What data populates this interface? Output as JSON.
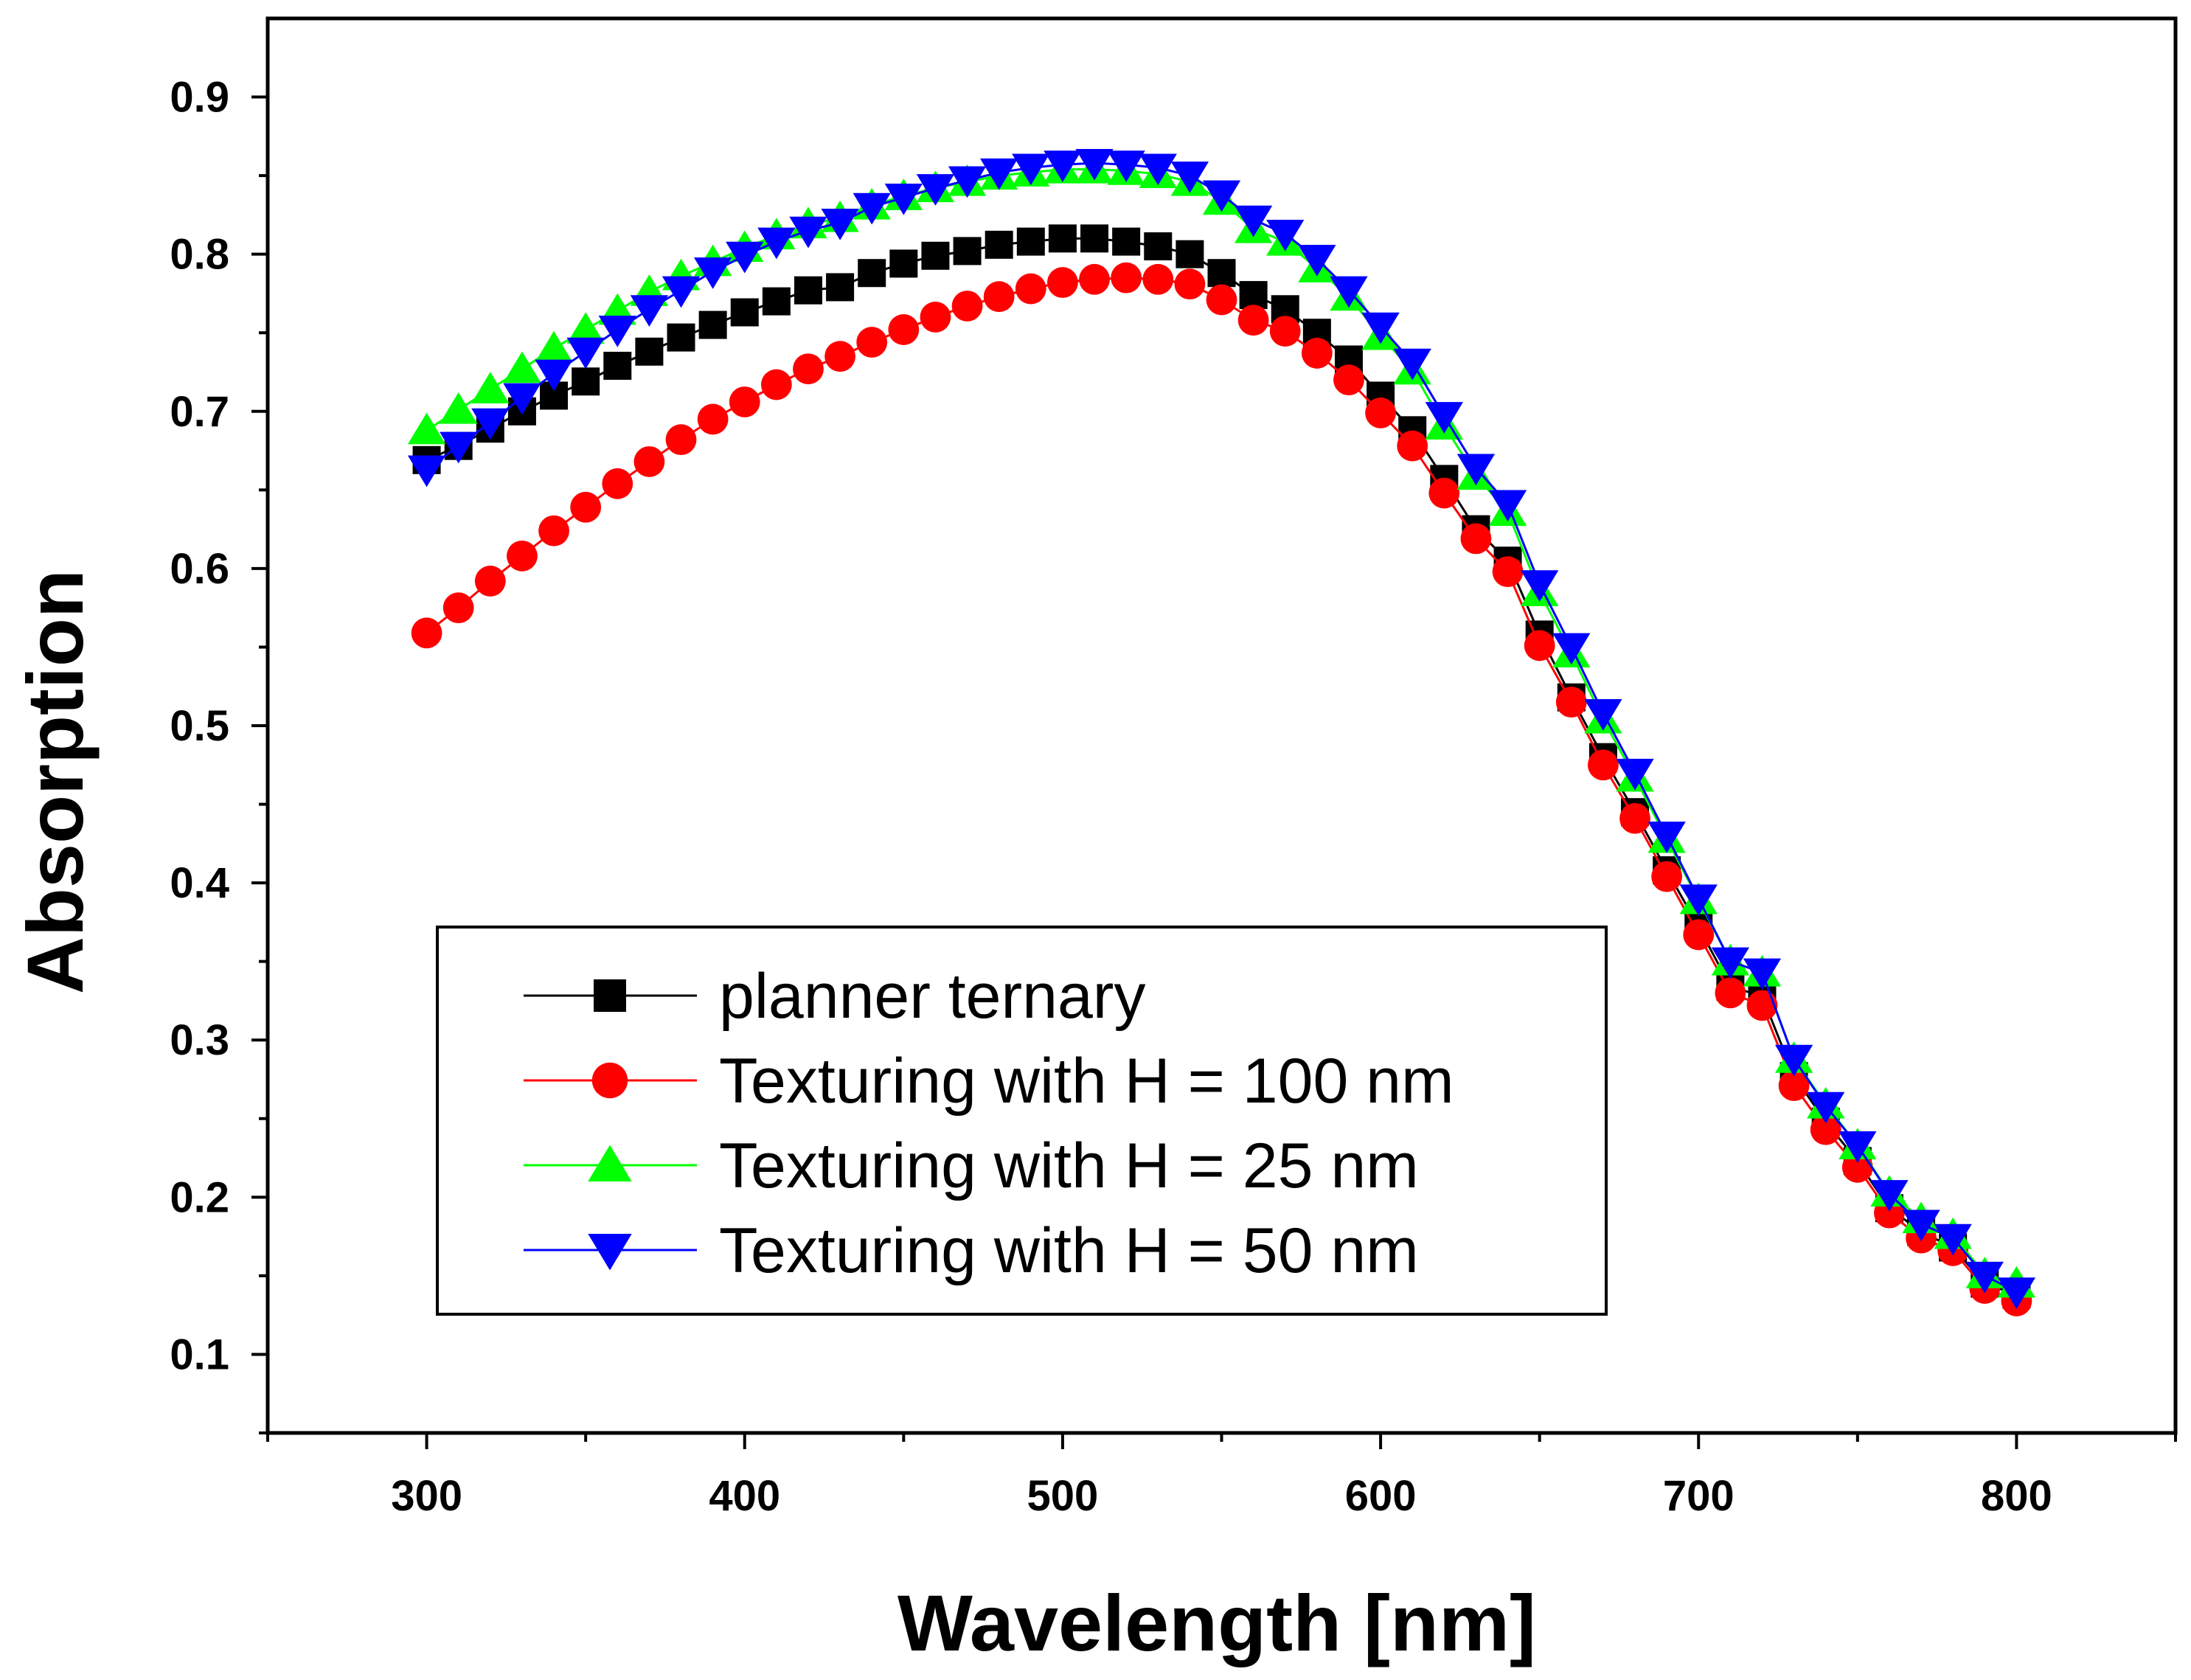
{
  "chart_data": {
    "type": "line",
    "title": "",
    "xlabel": "Wavelength [nm]",
    "ylabel": "Absorption",
    "xlim": [
      250,
      850
    ],
    "ylim": [
      0.05,
      0.95
    ],
    "xticks": [
      300,
      400,
      500,
      600,
      700,
      800
    ],
    "xtick_labels": [
      "300",
      "400",
      "500",
      "600",
      "700",
      "800"
    ],
    "yticks": [
      0.1,
      0.2,
      0.3,
      0.4,
      0.5,
      0.6,
      0.7,
      0.8,
      0.9
    ],
    "ytick_labels": [
      "0.1",
      "0.2",
      "0.3",
      "0.4",
      "0.5",
      "0.6",
      "0.7",
      "0.8",
      "0.9"
    ],
    "grid": false,
    "legend_position": "bottom-left",
    "x": [
      300,
      310,
      320,
      330,
      340,
      350,
      360,
      370,
      380,
      390,
      400,
      410,
      420,
      430,
      440,
      450,
      460,
      470,
      480,
      490,
      500,
      510,
      520,
      530,
      540,
      550,
      560,
      570,
      580,
      590,
      600,
      610,
      620,
      630,
      640,
      650,
      660,
      670,
      680,
      690,
      700,
      710,
      720,
      730,
      740,
      750,
      760,
      770,
      780,
      790,
      800
    ],
    "series": [
      {
        "name": "planner ternary",
        "color": "#000000",
        "marker": "square",
        "values": [
          0.669,
          0.678,
          0.689,
          0.7,
          0.71,
          0.719,
          0.729,
          0.738,
          0.747,
          0.755,
          0.763,
          0.77,
          0.777,
          0.779,
          0.788,
          0.794,
          0.799,
          0.802,
          0.806,
          0.808,
          0.81,
          0.81,
          0.808,
          0.805,
          0.8,
          0.788,
          0.774,
          0.765,
          0.75,
          0.733,
          0.71,
          0.688,
          0.657,
          0.625,
          0.605,
          0.558,
          0.518,
          0.48,
          0.445,
          0.408,
          0.372,
          0.334,
          0.328,
          0.277,
          0.248,
          0.223,
          0.193,
          0.178,
          0.168,
          0.145,
          0.138
        ]
      },
      {
        "name": "Texturing with H = 100 nm",
        "color": "#ff0000",
        "marker": "circle",
        "values": [
          0.559,
          0.575,
          0.592,
          0.608,
          0.624,
          0.639,
          0.654,
          0.668,
          0.682,
          0.695,
          0.706,
          0.717,
          0.727,
          0.735,
          0.744,
          0.752,
          0.76,
          0.767,
          0.773,
          0.778,
          0.782,
          0.784,
          0.785,
          0.784,
          0.781,
          0.771,
          0.758,
          0.751,
          0.737,
          0.72,
          0.699,
          0.678,
          0.648,
          0.619,
          0.598,
          0.551,
          0.515,
          0.475,
          0.441,
          0.404,
          0.367,
          0.33,
          0.322,
          0.271,
          0.243,
          0.219,
          0.19,
          0.174,
          0.166,
          0.142,
          0.134
        ]
      },
      {
        "name": "Texturing with H = 25 nm",
        "color": "#00ff00",
        "marker": "triangle-up",
        "values": [
          0.688,
          0.701,
          0.714,
          0.727,
          0.74,
          0.752,
          0.764,
          0.776,
          0.786,
          0.795,
          0.804,
          0.812,
          0.819,
          0.823,
          0.831,
          0.837,
          0.842,
          0.846,
          0.85,
          0.852,
          0.854,
          0.854,
          0.853,
          0.851,
          0.846,
          0.834,
          0.816,
          0.808,
          0.791,
          0.773,
          0.748,
          0.726,
          0.691,
          0.659,
          0.636,
          0.585,
          0.546,
          0.504,
          0.467,
          0.428,
          0.389,
          0.35,
          0.343,
          0.288,
          0.259,
          0.233,
          0.203,
          0.186,
          0.176,
          0.151,
          0.145
        ]
      },
      {
        "name": "Texturing with H = 50 nm",
        "color": "#0000ff",
        "marker": "triangle-down",
        "values": [
          0.663,
          0.678,
          0.693,
          0.709,
          0.724,
          0.738,
          0.752,
          0.765,
          0.777,
          0.789,
          0.799,
          0.808,
          0.815,
          0.82,
          0.83,
          0.836,
          0.842,
          0.847,
          0.852,
          0.855,
          0.857,
          0.858,
          0.857,
          0.855,
          0.85,
          0.838,
          0.822,
          0.813,
          0.797,
          0.777,
          0.754,
          0.731,
          0.697,
          0.664,
          0.641,
          0.59,
          0.55,
          0.508,
          0.47,
          0.43,
          0.39,
          0.35,
          0.343,
          0.288,
          0.258,
          0.233,
          0.202,
          0.183,
          0.174,
          0.15,
          0.14
        ]
      }
    ]
  }
}
